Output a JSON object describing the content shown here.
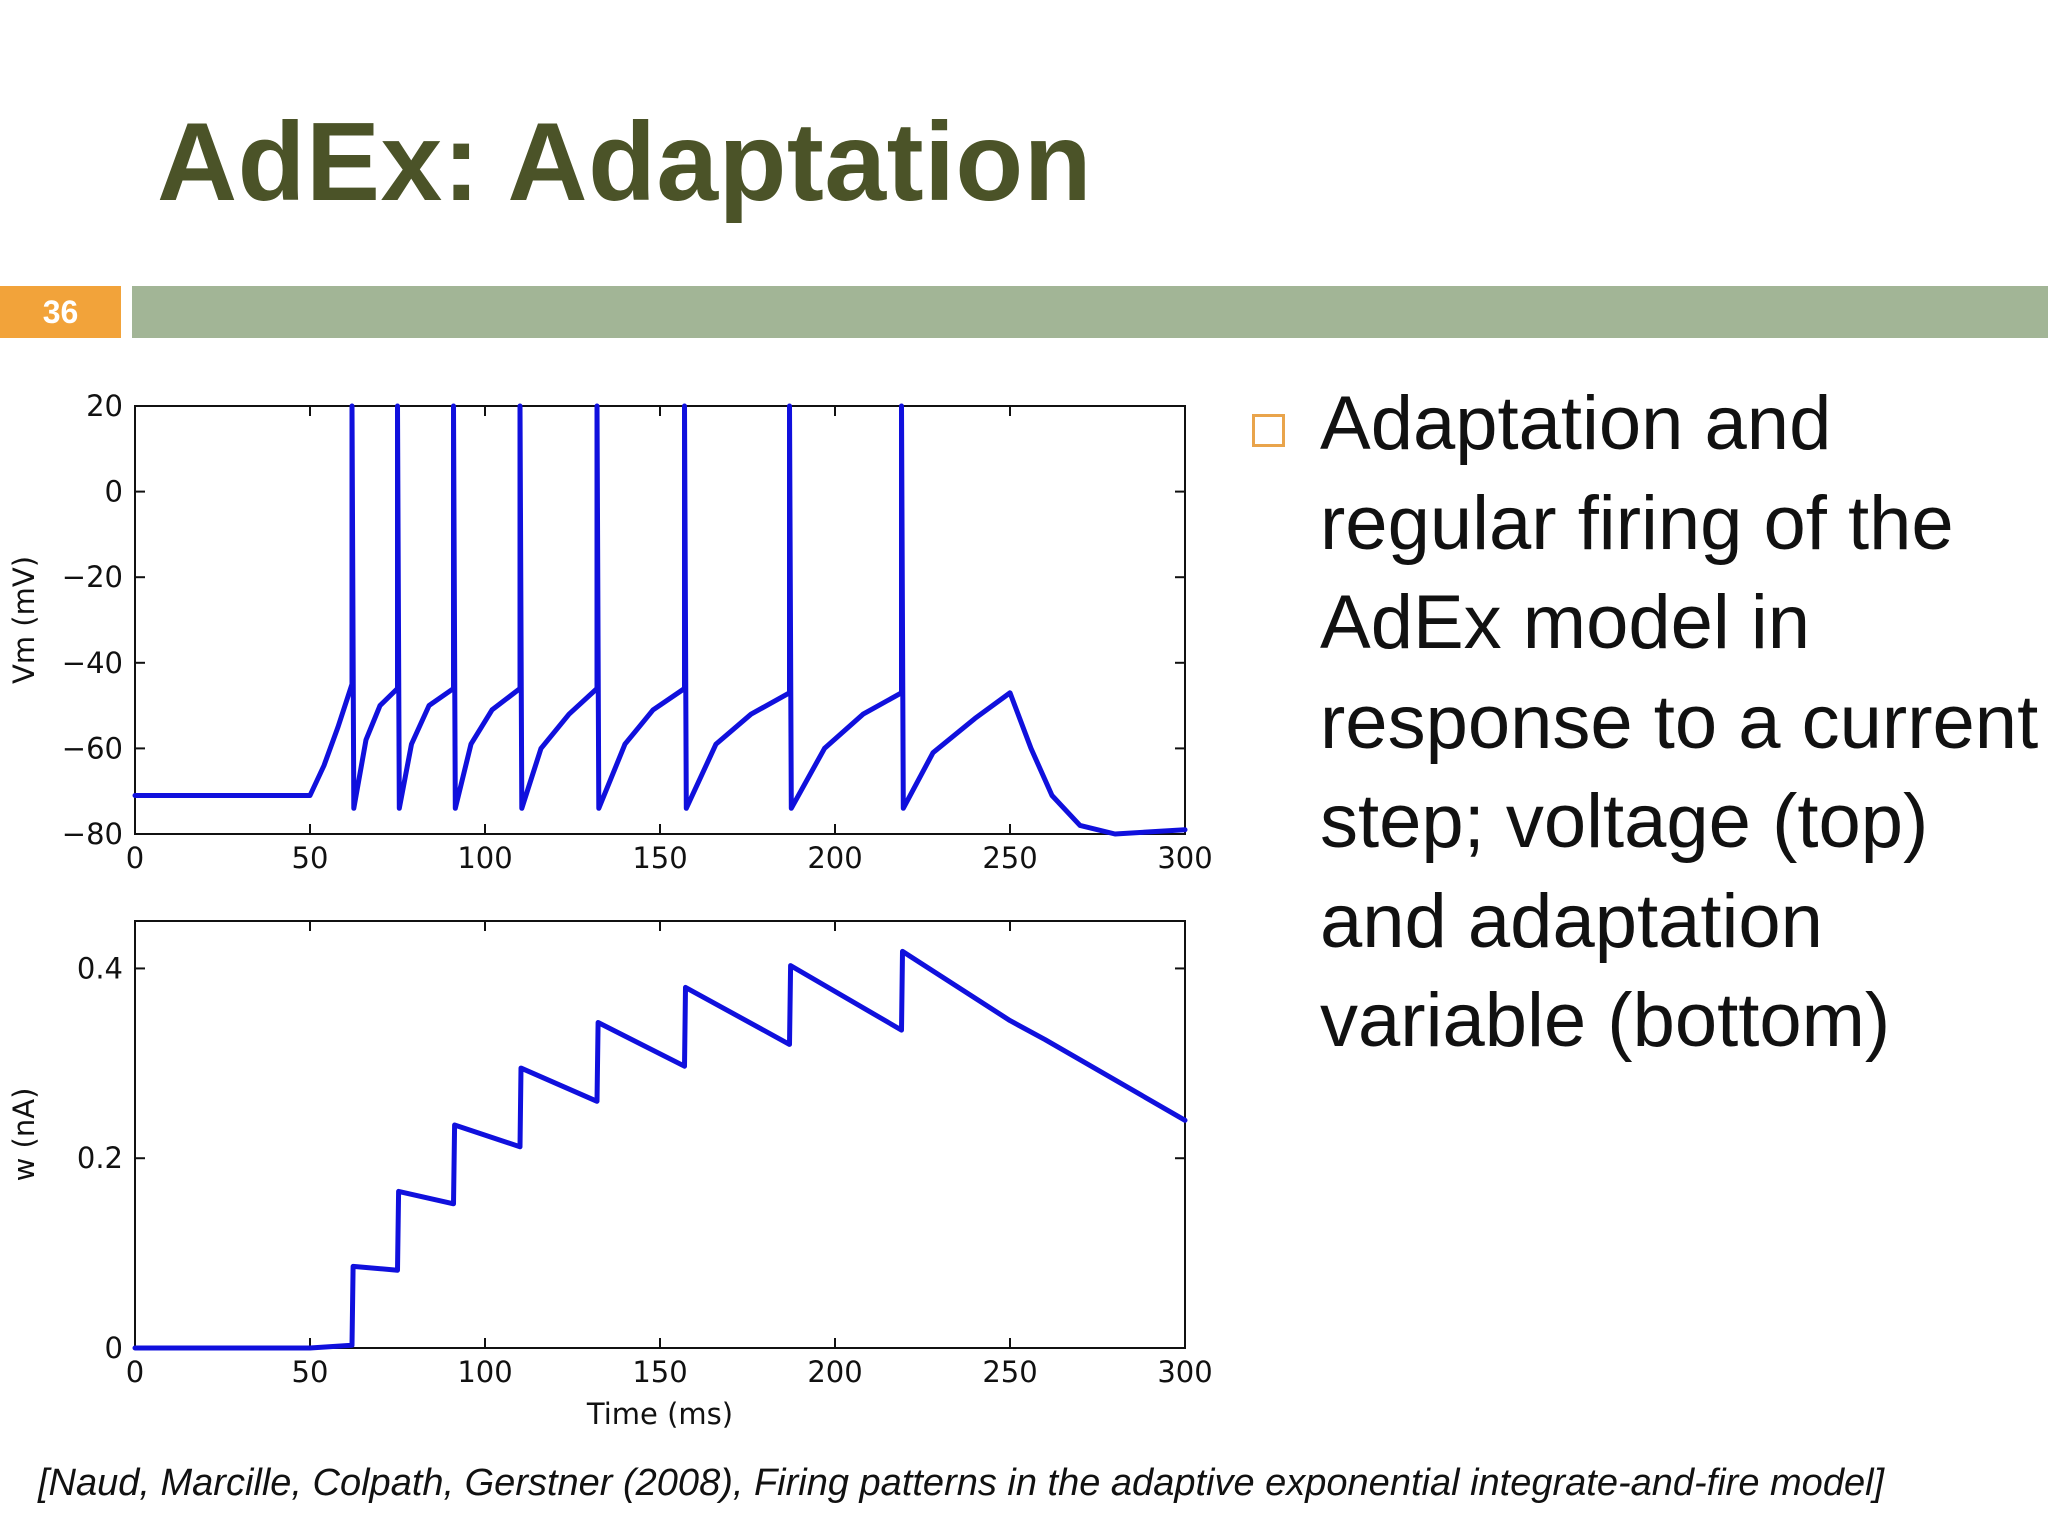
{
  "slide": {
    "title": "AdEx: Adaptation",
    "number": "36",
    "bullet": "Adaptation and regular firing of the AdEx model in response to a current step; voltage (top) and adaptation variable (bottom)",
    "citation": "[Naud, Marcille, Colpath, Gerstner (2008), Firing patterns in the adaptive exponential integrate-and-fire model]"
  },
  "colors": {
    "title": "#4b5328",
    "slide_number_bg": "#f2a33a",
    "rule": "#a2b596",
    "bullet": "#e9a44b",
    "trace": "#1010dd"
  },
  "chart_data": [
    {
      "type": "line",
      "title": "",
      "xlabel": "",
      "ylabel": "Vm (mV)",
      "xlim": [
        0,
        300
      ],
      "ylim": [
        -80,
        20
      ],
      "xticks": [
        0,
        50,
        100,
        150,
        200,
        250,
        300
      ],
      "yticks": [
        -80,
        -60,
        -40,
        -20,
        0,
        20
      ],
      "series": [
        {
          "x": [
            0,
            50,
            54,
            58,
            62,
            62,
            62.5,
            66,
            70,
            75,
            75,
            75.5,
            79,
            84,
            91,
            91,
            91.5,
            96,
            102,
            110,
            110,
            110.5,
            116,
            124,
            132,
            132,
            132.5,
            140,
            148,
            157,
            157,
            157.5,
            166,
            176,
            187,
            187,
            187.5,
            197,
            208,
            219,
            219,
            219.5,
            228,
            240,
            250,
            256,
            262,
            270,
            280,
            300
          ],
          "y": [
            -71,
            -71,
            -64,
            -55,
            -45,
            20,
            -74,
            -58,
            -50,
            -46,
            20,
            -74,
            -59,
            -50,
            -46,
            20,
            -74,
            -59,
            -51,
            -46,
            20,
            -74,
            -60,
            -52,
            -46,
            20,
            -74,
            -59,
            -51,
            -46,
            20,
            -74,
            -59,
            -52,
            -47,
            20,
            -74,
            -60,
            -52,
            -47,
            20,
            -74,
            -61,
            -53,
            -47,
            -60,
            -71,
            -78,
            -80,
            -79
          ]
        }
      ]
    },
    {
      "type": "line",
      "title": "",
      "xlabel": "Time (ms)",
      "ylabel": "w (nA)",
      "xlim": [
        0,
        300
      ],
      "ylim": [
        0,
        0.45
      ],
      "xticks": [
        0,
        50,
        100,
        150,
        200,
        250,
        300
      ],
      "yticks": [
        0.0,
        0.2,
        0.4
      ],
      "series": [
        {
          "x": [
            0,
            50,
            62,
            62.3,
            75,
            75.3,
            91,
            91.3,
            110,
            110.3,
            132,
            132.3,
            157,
            157.3,
            187,
            187.3,
            219,
            219.3,
            250,
            260,
            300
          ],
          "y": [
            0,
            0,
            0.003,
            0.086,
            0.082,
            0.165,
            0.152,
            0.235,
            0.212,
            0.295,
            0.26,
            0.343,
            0.297,
            0.38,
            0.32,
            0.403,
            0.335,
            0.418,
            0.345,
            0.325,
            0.24
          ]
        }
      ]
    }
  ]
}
